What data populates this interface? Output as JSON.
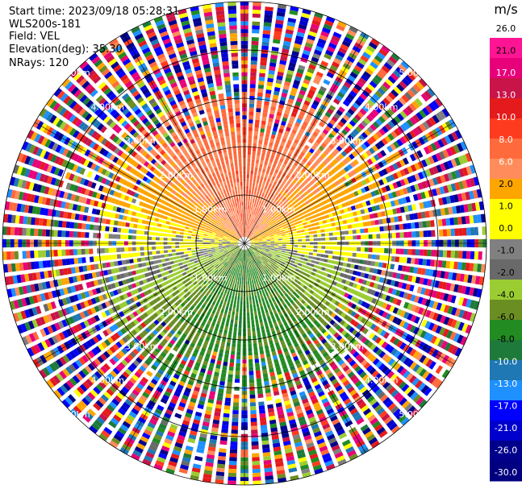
{
  "header": {
    "start_time": "Start time: 2023/09/18 05:28:31",
    "instrument": "WLS200s-181",
    "field": "Field: VEL",
    "elevation": "Elevation(deg): 35.30",
    "nrays": "NRays: 120"
  },
  "colorbar": {
    "unit": "m/s",
    "labels": [
      "26.0",
      "21.0",
      "17.0",
      "13.0",
      "10.0",
      "8.0",
      "6.0",
      "2.0",
      "1.0",
      "0.0",
      "-1.0",
      "-2.0",
      "-4.0",
      "-6.0",
      "-8.0",
      "-10.0",
      "-13.0",
      "-17.0",
      "-21.0",
      "-26.0",
      "-30.0"
    ],
    "colors": [
      "#ffffff",
      "#ff1493",
      "#e8007a",
      "#c81448",
      "#e41a1c",
      "#ff3b1f",
      "#ff6a3c",
      "#ff8c5a",
      "#ffa500",
      "#ffff00",
      "#ffff00",
      "#808080",
      "#696969",
      "#9acd32",
      "#6b8e23",
      "#228b22",
      "#1e7a3a",
      "#1f77b4",
      "#1e90ff",
      "#0000ff",
      "#0000cd",
      "#00008b",
      "#000080"
    ]
  },
  "chart_data": {
    "type": "heatmap",
    "projection": "polar PPI scan",
    "field": "VEL",
    "unit": "m/s",
    "nrays": 120,
    "range_rings_km": [
      1.0,
      2.0,
      3.0,
      4.0,
      5.0
    ],
    "ring_labels": [
      "1.00km",
      "2.00km",
      "3.00km",
      "4.00km",
      "5.00km"
    ],
    "color_scale": {
      "boundaries": [
        -30.0,
        -26.0,
        -21.0,
        -17.0,
        -13.0,
        -10.0,
        -8.0,
        -6.0,
        -4.0,
        -2.0,
        -1.0,
        0.0,
        1.0,
        2.0,
        6.0,
        8.0,
        10.0,
        13.0,
        17.0,
        21.0,
        26.0
      ],
      "tick_labels": [
        "26.0",
        "21.0",
        "17.0",
        "13.0",
        "10.0",
        "8.0",
        "6.0",
        "2.0",
        "1.0",
        "0.0",
        "-1.0",
        "-2.0",
        "-4.0",
        "-6.0",
        "-8.0",
        "-10.0",
        "-13.0",
        "-17.0",
        "-21.0",
        "-26.0",
        "-30.0"
      ]
    },
    "velocity_pattern": {
      "north_sector_inner_m_s": 9.0,
      "south_sector_inner_m_s": -7.0,
      "east_west_m_s": 0.5,
      "outer_range_noisy": true
    }
  }
}
